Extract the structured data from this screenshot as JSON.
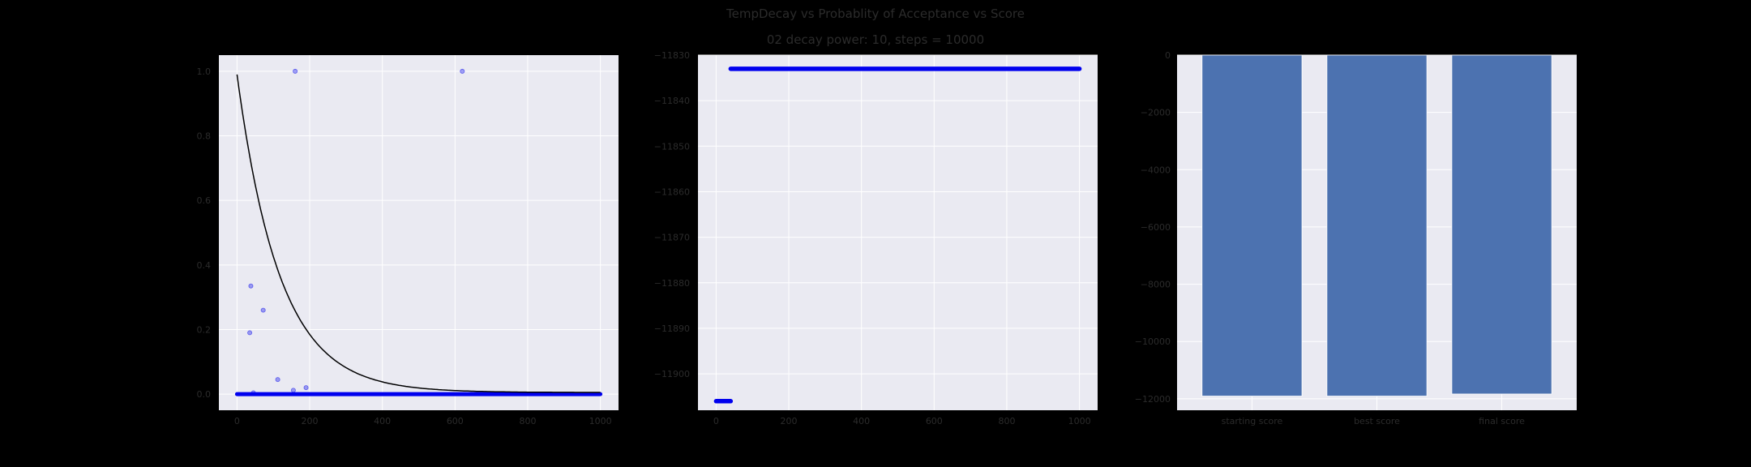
{
  "title": "TempDecay vs Probablity of Acceptance vs Score",
  "subtitle": "02 decay power: 10, steps = 10000",
  "colors": {
    "figure_bg": "#000000",
    "axes_bg": "#eaeaf2",
    "grid": "#ffffff",
    "scatter": "#0000ee",
    "curve": "#000000",
    "bar": "#4c72b0",
    "tick_text": "#2b2b2b"
  },
  "chart_data": [
    {
      "type": "scatter",
      "grid": true,
      "xlim": [
        -50,
        1050
      ],
      "ylim": [
        -0.05,
        1.05
      ],
      "xticks": [
        0,
        200,
        400,
        600,
        800,
        1000
      ],
      "yticks": [
        0.0,
        0.2,
        0.4,
        0.6,
        0.8,
        1.0
      ],
      "ytick_labels": [
        "0.0",
        "0.2",
        "0.4",
        "0.6",
        "0.8",
        "1.0"
      ],
      "curve": {
        "type": "line",
        "decay_power": 10,
        "steps": 10000,
        "x_range": [
          0,
          1000
        ],
        "y_start": 0.99,
        "y_end": 0.005
      },
      "dense_band": {
        "x_range": [
          0,
          1000
        ],
        "y": 0.0
      },
      "points": [
        {
          "x": 160,
          "y": 1.0
        },
        {
          "x": 620,
          "y": 1.0
        },
        {
          "x": 38,
          "y": 0.335
        },
        {
          "x": 72,
          "y": 0.26
        },
        {
          "x": 35,
          "y": 0.19
        },
        {
          "x": 112,
          "y": 0.045
        },
        {
          "x": 190,
          "y": 0.02
        },
        {
          "x": 155,
          "y": 0.012
        },
        {
          "x": 45,
          "y": 0.004
        }
      ]
    },
    {
      "type": "scatter",
      "grid": true,
      "xlim": [
        -50,
        1050
      ],
      "ylim": [
        -11908,
        -11830
      ],
      "xticks": [
        0,
        200,
        400,
        600,
        800,
        1000
      ],
      "yticks": [
        -11830,
        -11840,
        -11850,
        -11860,
        -11870,
        -11880,
        -11890,
        -11900
      ],
      "ytick_labels": [
        "−11830",
        "−11840",
        "−11850",
        "−11860",
        "−11870",
        "−11880",
        "−11890",
        "−11900"
      ],
      "segments": [
        {
          "x_range": [
            0,
            40
          ],
          "y": -11906
        },
        {
          "x_range": [
            40,
            1000
          ],
          "y": -11833
        }
      ]
    },
    {
      "type": "bar",
      "grid": true,
      "categories": [
        "starting score",
        "best score",
        "final score"
      ],
      "values": [
        -11906,
        -11906,
        -11833
      ],
      "ylim": [
        -12400,
        0
      ],
      "yticks": [
        0,
        -2000,
        -4000,
        -6000,
        -8000,
        -10000,
        -12000
      ],
      "ytick_labels": [
        "0",
        "−2000",
        "−4000",
        "−6000",
        "−8000",
        "−10000",
        "−12000"
      ]
    }
  ]
}
